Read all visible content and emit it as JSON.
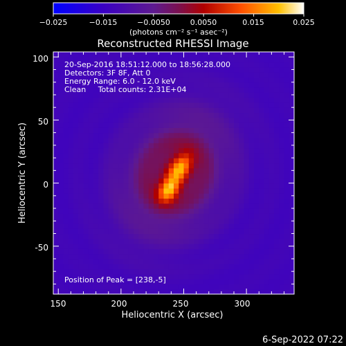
{
  "chart_data": {
    "type": "heatmap",
    "title": "Reconstructed RHESSI Image",
    "xlabel": "Heliocentric X (arcsec)",
    "ylabel": "Heliocentric Y (arcsec)",
    "xlim": [
      146,
      338
    ],
    "ylim": [
      -88,
      104
    ],
    "x_ticks": [
      150,
      200,
      250,
      300
    ],
    "y_ticks": [
      -50,
      0,
      50,
      100
    ],
    "grid": false,
    "colorbar": {
      "position": "top",
      "label": "(photons cm⁻² s⁻¹ asec⁻²)",
      "range": [
        -0.025,
        0.025
      ],
      "tick_values": [
        -0.025,
        -0.015,
        -0.005,
        0.005,
        0.015,
        0.025
      ],
      "tick_labels": [
        "−0.025",
        "−0.015",
        "−0.0050",
        "0.0050",
        "0.015",
        "0.025"
      ],
      "colormap": [
        [
          0.0,
          "#0000ff"
        ],
        [
          0.2,
          "#3a00c4"
        ],
        [
          0.4,
          "#5e1a90"
        ],
        [
          0.5,
          "#7a1050"
        ],
        [
          0.6,
          "#b00000"
        ],
        [
          0.75,
          "#ff5000"
        ],
        [
          0.9,
          "#ffc000"
        ],
        [
          1.0,
          "#ffffff"
        ]
      ]
    },
    "annotations": [
      "20-Sep-2016 18:51:12.000 to 18:56:28.000",
      "Detectors: 3F 8F, Att 0",
      "Energy Range: 6.0 - 12.0 keV",
      "Clean     Total counts: 2.31E+04",
      "Position of Peak = [238,-5]"
    ],
    "peak_position": [
      238,
      -5
    ],
    "source_components": [
      {
        "x": 238,
        "y": -5,
        "amplitude": 0.021,
        "sigma_major": 7,
        "sigma_minor": 5
      },
      {
        "x": 248,
        "y": 13,
        "amplitude": 0.017,
        "sigma_major": 8,
        "sigma_minor": 5
      },
      {
        "x": 243,
        "y": 8,
        "amplitude": 0.016,
        "sigma_major": 36,
        "sigma_minor": 26
      }
    ],
    "background_level": -0.013
  },
  "timestamp": "6-Sep-2022 07:22"
}
